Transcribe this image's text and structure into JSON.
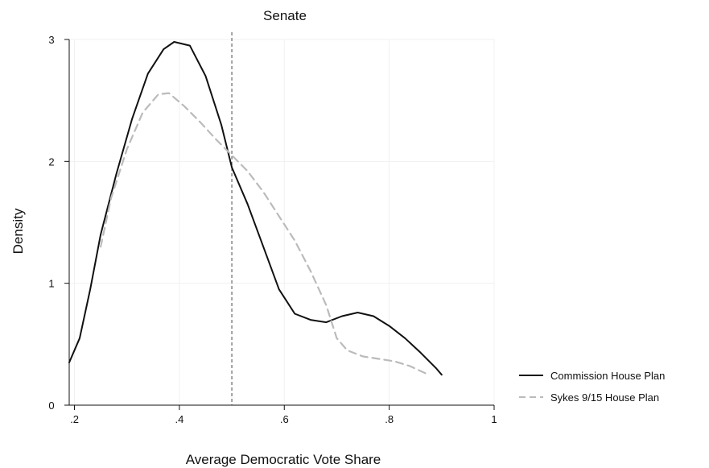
{
  "chart_data": {
    "type": "line",
    "title": "Senate",
    "xlabel": "Average Democratic Vote Share",
    "ylabel": "Density",
    "xlim": [
      0.19,
      1.0
    ],
    "ylim": [
      0,
      3
    ],
    "x_ticks": [
      ".2",
      ".4",
      ".6",
      ".8",
      "1"
    ],
    "x_tick_values": [
      0.2,
      0.4,
      0.6,
      0.8,
      1.0
    ],
    "y_ticks": [
      "0",
      "1",
      "2",
      "3"
    ],
    "y_tick_values": [
      0,
      1,
      2,
      3
    ],
    "grid": true,
    "legend_position": "right",
    "reference_line": {
      "orientation": "vertical",
      "x": 0.5,
      "style": "dashed"
    },
    "series": [
      {
        "name": "Commission House Plan",
        "style": "solid",
        "color": "#111111",
        "points": [
          [
            0.19,
            0.35
          ],
          [
            0.21,
            0.55
          ],
          [
            0.23,
            0.95
          ],
          [
            0.25,
            1.4
          ],
          [
            0.28,
            1.9
          ],
          [
            0.31,
            2.35
          ],
          [
            0.34,
            2.72
          ],
          [
            0.37,
            2.92
          ],
          [
            0.39,
            2.98
          ],
          [
            0.42,
            2.95
          ],
          [
            0.45,
            2.7
          ],
          [
            0.48,
            2.3
          ],
          [
            0.5,
            1.95
          ],
          [
            0.53,
            1.65
          ],
          [
            0.56,
            1.3
          ],
          [
            0.59,
            0.95
          ],
          [
            0.62,
            0.75
          ],
          [
            0.65,
            0.7
          ],
          [
            0.68,
            0.68
          ],
          [
            0.71,
            0.73
          ],
          [
            0.74,
            0.76
          ],
          [
            0.77,
            0.73
          ],
          [
            0.8,
            0.65
          ],
          [
            0.83,
            0.55
          ],
          [
            0.86,
            0.43
          ],
          [
            0.89,
            0.3
          ],
          [
            0.9,
            0.25
          ]
        ]
      },
      {
        "name": "Sykes 9/15 House Plan",
        "style": "dashed",
        "color": "#bbbbbb",
        "points": [
          [
            0.25,
            1.3
          ],
          [
            0.27,
            1.7
          ],
          [
            0.3,
            2.1
          ],
          [
            0.33,
            2.4
          ],
          [
            0.36,
            2.55
          ],
          [
            0.38,
            2.56
          ],
          [
            0.41,
            2.45
          ],
          [
            0.44,
            2.32
          ],
          [
            0.47,
            2.18
          ],
          [
            0.5,
            2.05
          ],
          [
            0.53,
            1.92
          ],
          [
            0.56,
            1.75
          ],
          [
            0.59,
            1.55
          ],
          [
            0.62,
            1.35
          ],
          [
            0.65,
            1.1
          ],
          [
            0.68,
            0.82
          ],
          [
            0.7,
            0.55
          ],
          [
            0.72,
            0.45
          ],
          [
            0.75,
            0.4
          ],
          [
            0.78,
            0.38
          ],
          [
            0.81,
            0.36
          ],
          [
            0.84,
            0.32
          ],
          [
            0.87,
            0.26
          ]
        ]
      }
    ]
  }
}
